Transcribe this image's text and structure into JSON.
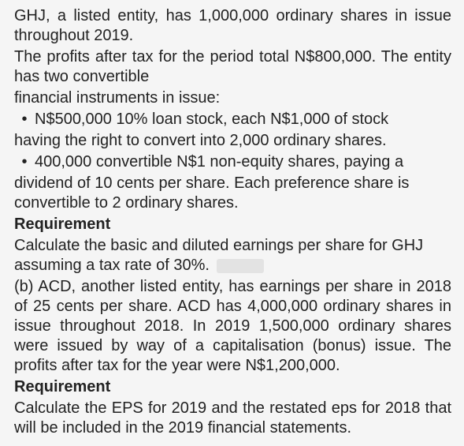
{
  "p1": "GHJ, a listed entity, has 1,000,000 ordinary shares in issue throughout 2019.",
  "p2": "The profits after tax for the period total N$800,000.  The entity has two convertible",
  "p3": "financial instruments in issue:",
  "b1": "N$500,000 10% loan stock, each N$1,000 of stock",
  "b1_cont": "having the right to convert into 2,000 ordinary shares.",
  "b2": "400,000 convertible N$1 non-equity shares, paying a",
  "b2_cont": "dividend of 10 cents per share.  Each preference share is convertible to 2 ordinary shares.",
  "req1": "Requirement",
  "req1_text": "Calculate the basic and diluted earnings per share for GHJ assuming a tax rate of 30%.",
  "pb": "(b)  ACD, another listed entity, has earnings per share in 2018 of 25 cents per share.  ACD has 4,000,000 ordinary shares in issue throughout 2018.  In 2019 1,500,000 ordinary shares were issued by way of a capitalisation (bonus) issue.  The profits after tax for the year were N$1,200,000.",
  "req2": "Requirement",
  "req2_text": "Calculate the EPS for 2019 and the restated eps for 2018 that will be included in the 2019 financial statements.",
  "bullet_glyph": "•"
}
